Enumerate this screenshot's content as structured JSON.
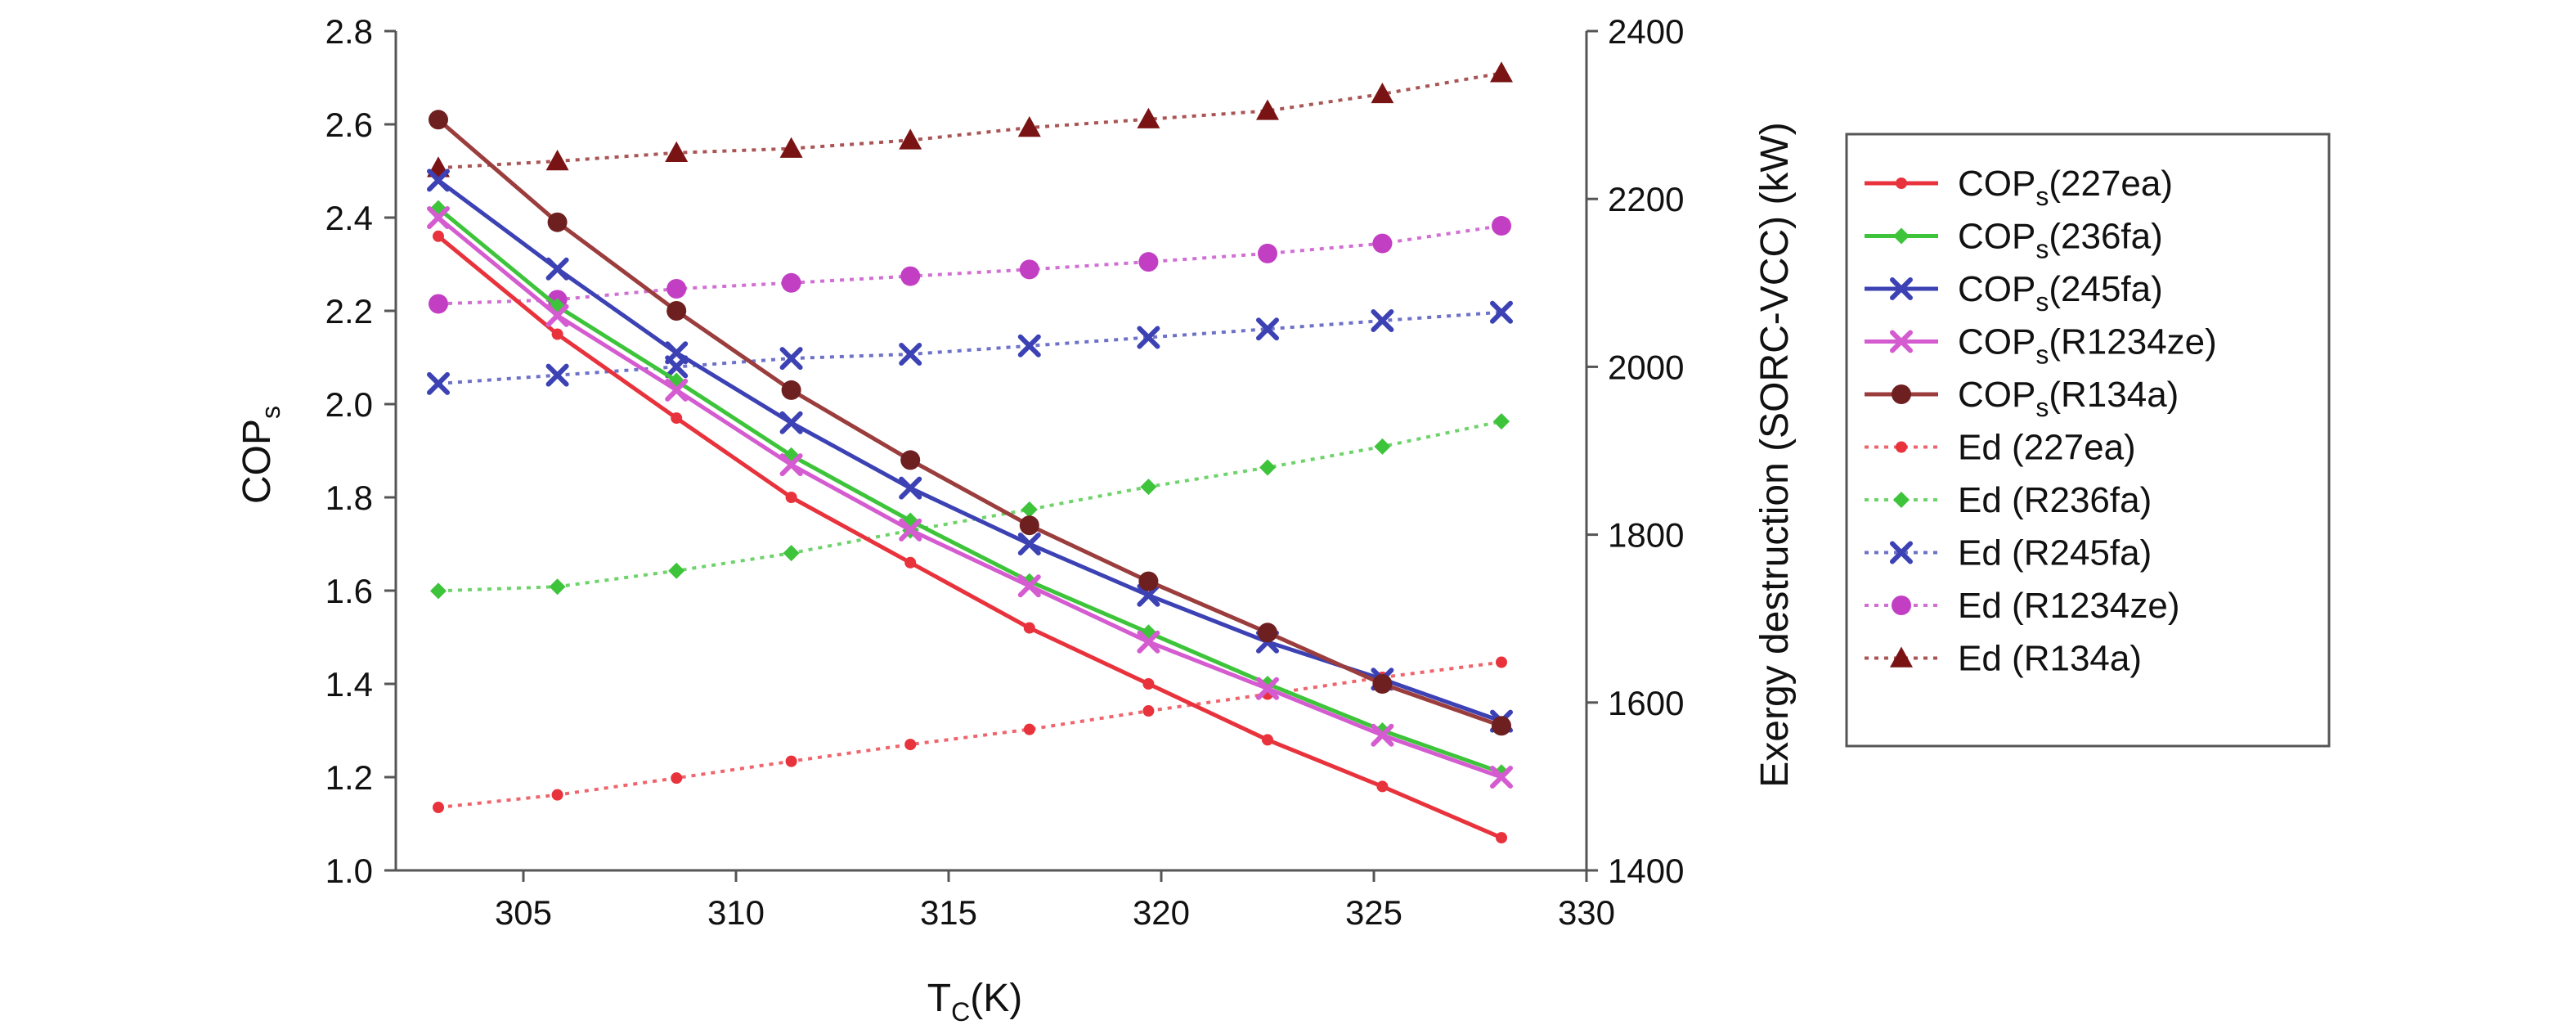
{
  "chart_data": {
    "type": "line",
    "title": "",
    "x": [
      303,
      305.8,
      308.6,
      311.3,
      314.1,
      316.9,
      319.7,
      322.5,
      325.2,
      328
    ],
    "xlabel": {
      "main": "T",
      "sub": "C",
      "tail": "(K)"
    },
    "xlim": [
      302,
      330
    ],
    "xticks": [
      "305",
      "310",
      "315",
      "320",
      "325",
      "330"
    ],
    "ylabel_left": {
      "main": "COP",
      "sub": "s"
    },
    "ylim_left": [
      1.0,
      2.8
    ],
    "yticks_left": [
      "1.0",
      "1.2",
      "1.4",
      "1.6",
      "1.8",
      "2.0",
      "2.2",
      "2.4",
      "2.6",
      "2.8"
    ],
    "ylabel_right": "Exergy destruction (SORC-VCC) (kW)",
    "ylim_right": [
      1400,
      2400
    ],
    "yticks_right": [
      "1400",
      "1600",
      "1800",
      "2000",
      "2200",
      "2400"
    ],
    "legend_position": "right-outside",
    "series": [
      {
        "name": "COPs(227ea)",
        "label_main": "COP",
        "label_sub": "s",
        "label_tail": "(227ea)",
        "axis": "left",
        "style": "solid",
        "marker": "dot",
        "color": "#e8323c",
        "values": [
          2.36,
          2.15,
          1.97,
          1.8,
          1.66,
          1.52,
          1.4,
          1.28,
          1.18,
          1.07
        ]
      },
      {
        "name": "COPs(236fa)",
        "label_main": "COP",
        "label_sub": "s",
        "label_tail": "(236fa)",
        "axis": "left",
        "style": "solid",
        "marker": "diamond",
        "color": "#3ec43a",
        "values": [
          2.42,
          2.21,
          2.05,
          1.89,
          1.75,
          1.62,
          1.51,
          1.4,
          1.3,
          1.21
        ]
      },
      {
        "name": "COPs(245fa)",
        "label_main": "COP",
        "label_sub": "s",
        "label_tail": "(245fa)",
        "axis": "left",
        "style": "solid",
        "marker": "x",
        "color": "#3c41b4",
        "values": [
          2.48,
          2.29,
          2.11,
          1.96,
          1.82,
          1.7,
          1.59,
          1.49,
          1.41,
          1.32
        ]
      },
      {
        "name": "COPs(R1234ze)",
        "label_main": "COP",
        "label_sub": "s",
        "label_tail": "(R1234ze)",
        "axis": "left",
        "style": "solid",
        "marker": "x",
        "color": "#d45bd0",
        "values": [
          2.4,
          2.19,
          2.03,
          1.87,
          1.73,
          1.61,
          1.49,
          1.39,
          1.29,
          1.2
        ]
      },
      {
        "name": "COPs(R134a)",
        "label_main": "COP",
        "label_sub": "s",
        "label_tail": "(R134a)",
        "axis": "left",
        "style": "solid",
        "marker": "darkcircle",
        "color": "#9b3d3d",
        "values": [
          2.61,
          2.39,
          2.2,
          2.03,
          1.88,
          1.74,
          1.62,
          1.51,
          1.4,
          1.31
        ]
      },
      {
        "name": "Ed (227ea)",
        "label_main": "Ed (227ea)",
        "axis": "right",
        "style": "dotted",
        "marker": "dot",
        "color": "#e8323c",
        "values": [
          1475,
          1490,
          1510,
          1530,
          1550,
          1568,
          1590,
          1610,
          1630,
          1648
        ]
      },
      {
        "name": "Ed (R236fa)",
        "label_main": "Ed (R236fa)",
        "axis": "right",
        "style": "dotted",
        "marker": "diamond",
        "color": "#3ec43a",
        "values": [
          1733,
          1738,
          1757,
          1778,
          1805,
          1830,
          1857,
          1880,
          1905,
          1935
        ]
      },
      {
        "name": "Ed (R245fa)",
        "label_main": "Ed (R245fa)",
        "axis": "right",
        "style": "dotted",
        "marker": "x",
        "color": "#3c41b4",
        "values": [
          1980,
          1990,
          2000,
          2010,
          2015,
          2025,
          2035,
          2045,
          2055,
          2065
        ]
      },
      {
        "name": "Ed (R1234ze)",
        "label_main": "Ed (R1234ze)",
        "axis": "right",
        "style": "dotted",
        "marker": "circle",
        "color": "#c23fc4",
        "values": [
          2075,
          2080,
          2093,
          2100,
          2108,
          2116,
          2125,
          2135,
          2147,
          2168
        ]
      },
      {
        "name": "Ed (R134a)",
        "label_main": "Ed (R134a)",
        "axis": "right",
        "style": "dotted",
        "marker": "triangle",
        "color": "#8e1c1c",
        "values": [
          2237,
          2245,
          2255,
          2260,
          2270,
          2285,
          2295,
          2305,
          2325,
          2350
        ]
      }
    ]
  }
}
